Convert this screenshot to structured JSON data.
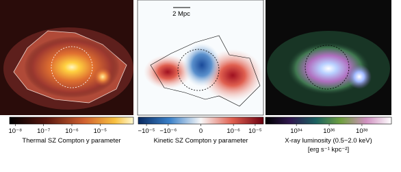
{
  "scale_bar": "2 Mpc",
  "colorbars": [
    {
      "label": "Thermal SZ Compton y parameter",
      "scale": "log",
      "lim": [
        6.3e-09,
        0.00015
      ],
      "ticks": [
        {
          "value": 1e-08,
          "label": "10⁻⁸"
        },
        {
          "value": 1e-07,
          "label": "10⁻⁷"
        },
        {
          "value": 1e-06,
          "label": "10⁻⁶"
        },
        {
          "value": 1e-05,
          "label": "10⁻⁵"
        }
      ]
    },
    {
      "label": "Kinetic SZ Compton y parameter",
      "scale": "symlog",
      "linthresh": 1e-07,
      "linscale": 0.5,
      "lim": [
        -2.4e-05,
        2.4e-05
      ],
      "ticks": [
        {
          "value": -1e-05,
          "label": "−10⁻⁵"
        },
        {
          "value": -1e-06,
          "label": "−10⁻⁶"
        },
        0,
        {
          "value": 1e-06,
          "label": "10⁻⁶"
        },
        {
          "value": 1e-05,
          "label": "10⁻⁵"
        }
      ]
    },
    {
      "label": "X-ray luminosity (0.5−2.0 keV)",
      "units": "[erg s⁻¹ kpc⁻²]",
      "scale": "log",
      "lim": [
        1.3e+32,
        6.3e+39
      ],
      "ticks": [
        {
          "value": 1e+34,
          "label": "10³⁴"
        },
        {
          "value": 1e+36,
          "label": "10³⁶"
        },
        {
          "value": 1e+38,
          "label": "10³⁸"
        }
      ]
    }
  ]
}
